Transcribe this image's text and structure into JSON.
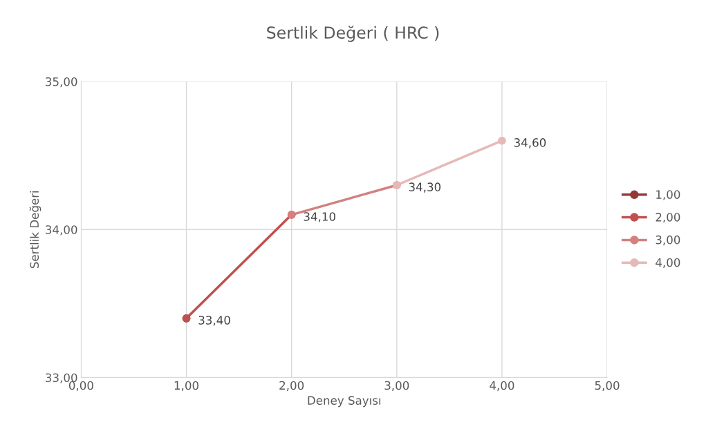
{
  "chart_data": {
    "type": "line",
    "title": "Sertlik Değeri ( HRC )",
    "xlabel": "Deney Sayısı",
    "ylabel": "Sertlik Değeri",
    "series": [
      {
        "name": "1,00",
        "color": "#953735",
        "x": [
          1
        ],
        "values": [
          33.4
        ],
        "value_labels": [
          "33,40"
        ]
      },
      {
        "name": "2,00",
        "color": "#c0504d",
        "x": [
          1,
          2
        ],
        "values": [
          33.4,
          34.1
        ],
        "value_labels": [
          null,
          "34,10"
        ]
      },
      {
        "name": "3,00",
        "color": "#d3807f",
        "x": [
          2,
          3
        ],
        "values": [
          34.1,
          34.3
        ],
        "value_labels": [
          null,
          "34,30"
        ]
      },
      {
        "name": "4,00",
        "color": "#e6b9b8",
        "x": [
          3,
          4
        ],
        "values": [
          34.3,
          34.6
        ],
        "value_labels": [
          null,
          "34,60"
        ]
      }
    ],
    "xlim": [
      0,
      5
    ],
    "xticks": [
      {
        "value": 0,
        "label": "0,00"
      },
      {
        "value": 1,
        "label": "1,00"
      },
      {
        "value": 2,
        "label": "2,00"
      },
      {
        "value": 3,
        "label": "3,00"
      },
      {
        "value": 4,
        "label": "4,00"
      },
      {
        "value": 5,
        "label": "5,00"
      }
    ],
    "ylim": [
      33,
      35
    ],
    "yticks": [
      {
        "value": 33,
        "label": "33,00"
      },
      {
        "value": 34,
        "label": "34,00"
      },
      {
        "value": 35,
        "label": "35,00"
      }
    ],
    "grid": true,
    "legend": "right",
    "marker": "circle",
    "line_style": "solid"
  }
}
